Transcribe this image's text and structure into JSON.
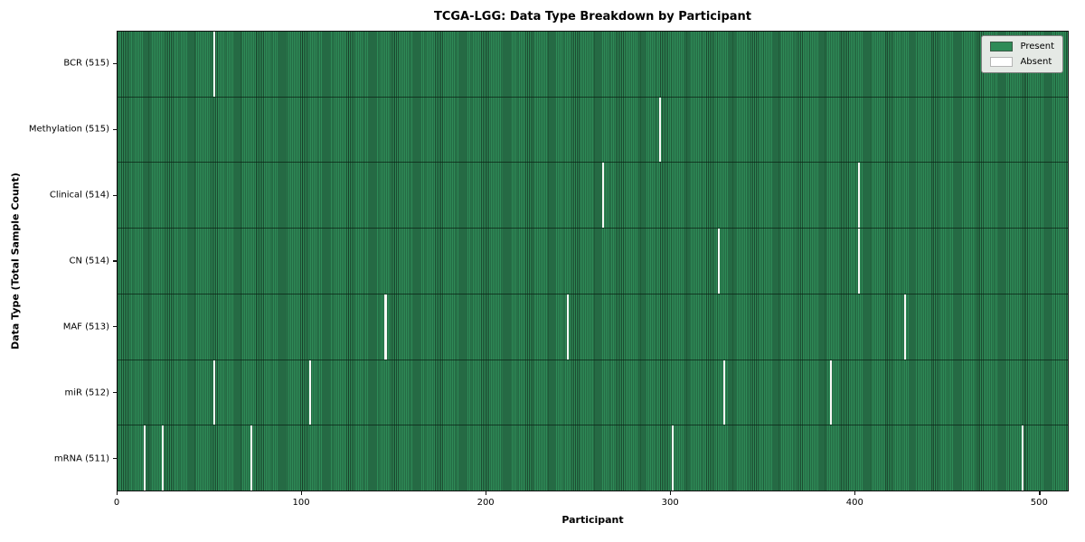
{
  "chart_data": {
    "type": "heatmap",
    "title": "TCGA-LGG: Data Type Breakdown by Participant",
    "xlabel": "Participant",
    "ylabel": "Data Type (Total Sample Count)",
    "xlim": [
      0,
      516
    ],
    "n_participants": 516,
    "x_ticks": [
      0,
      100,
      200,
      300,
      400,
      500
    ],
    "grid": false,
    "legend_position": "upper right",
    "legend": [
      {
        "label": "Present",
        "color": "#2e8b57"
      },
      {
        "label": "Absent",
        "color": "#ffffff"
      }
    ],
    "rows": [
      {
        "label": "BCR (515)",
        "total_samples": 515,
        "absent_participants": [
          52
        ]
      },
      {
        "label": "Methylation (515)",
        "total_samples": 515,
        "absent_participants": [
          294
        ]
      },
      {
        "label": "Clinical (514)",
        "total_samples": 514,
        "absent_participants": [
          263,
          402
        ]
      },
      {
        "label": "CN (514)",
        "total_samples": 514,
        "absent_participants": [
          326,
          402
        ]
      },
      {
        "label": "MAF (513)",
        "total_samples": 513,
        "absent_participants": [
          145,
          244,
          427
        ]
      },
      {
        "label": "miR (512)",
        "total_samples": 512,
        "absent_participants": [
          52,
          104,
          329,
          387
        ]
      },
      {
        "label": "mRNA (511)",
        "total_samples": 511,
        "absent_participants": [
          14,
          24,
          72,
          301,
          491
        ]
      }
    ],
    "colors": {
      "present": "#2e8b57",
      "absent": "#f8f8f6",
      "bar_edge": "#1c4a30",
      "legend_bg": "#e5e9e5"
    }
  }
}
